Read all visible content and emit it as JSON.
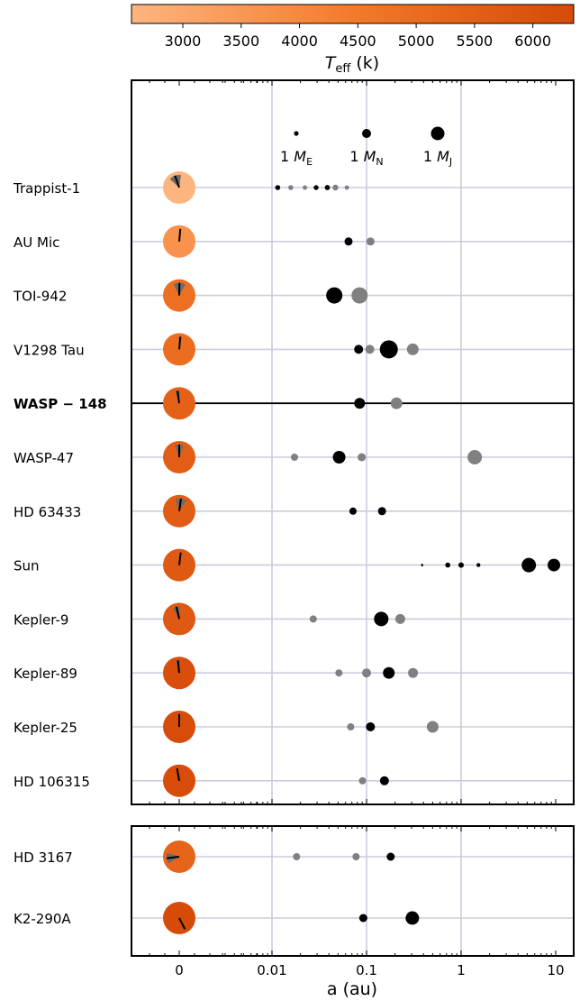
{
  "colorbar": {
    "label": "T",
    "label_sub": "eff",
    "label_unit": " (k)",
    "ticks": [
      3000,
      3500,
      4000,
      4500,
      5000,
      5500,
      6000
    ],
    "range": [
      2560,
      6350
    ],
    "colors": {
      "low": "#fdb57f",
      "mid": "#f47a2a",
      "high": "#d54a07"
    }
  },
  "chart_data": {
    "type": "scatter",
    "xlabel": "a (au)",
    "xscale": "log",
    "xticks": [
      "0",
      "0.01",
      "0.1",
      "1",
      "10"
    ],
    "xlim": [
      0.0008,
      15
    ],
    "legend": [
      {
        "label": "1 M",
        "sub": "E",
        "size": "earth"
      },
      {
        "label": "1 M",
        "sub": "N",
        "size": "neptune"
      },
      {
        "label": "1 M",
        "sub": "J",
        "size": "jupiter"
      }
    ],
    "colors": {
      "black": "#000000",
      "grey": "#808080",
      "grid": "#ccccdd",
      "wedge": "#6b6b6b"
    },
    "panels": [
      {
        "systems": [
          {
            "name": "Trappist-1",
            "teff": 2566,
            "obliquity": -20,
            "unc": 28,
            "planets": [
              {
                "a": 0.0115,
                "r": 2.8,
                "c": "black"
              },
              {
                "a": 0.0158,
                "r": 2.8,
                "c": "grey"
              },
              {
                "a": 0.0223,
                "r": 2.5,
                "c": "grey"
              },
              {
                "a": 0.0293,
                "r": 2.7,
                "c": "black"
              },
              {
                "a": 0.0385,
                "r": 2.9,
                "c": "black"
              },
              {
                "a": 0.0469,
                "r": 3.2,
                "c": "grey"
              },
              {
                "a": 0.0619,
                "r": 2.4,
                "c": "grey"
              }
            ]
          },
          {
            "name": "AU Mic",
            "teff": 3700,
            "obliquity": 5,
            "unc": 5,
            "planets": [
              {
                "a": 0.0645,
                "r": 4.5,
                "c": "black"
              },
              {
                "a": 0.11,
                "r": 4.5,
                "c": "grey"
              }
            ]
          },
          {
            "name": "TOI-942",
            "teff": 4900,
            "obliquity": 1,
            "unc": 28,
            "planets": [
              {
                "a": 0.0456,
                "r": 9,
                "c": "black"
              },
              {
                "a": 0.0844,
                "r": 9,
                "c": "grey"
              }
            ]
          },
          {
            "name": "V1298 Tau",
            "teff": 4970,
            "obliquity": 5,
            "unc": 7,
            "planets": [
              {
                "a": 0.0825,
                "r": 5,
                "c": "black"
              },
              {
                "a": 0.1083,
                "r": 5,
                "c": "grey"
              },
              {
                "a": 0.172,
                "r": 10,
                "c": "black"
              },
              {
                "a": 0.308,
                "r": 6.5,
                "c": "grey"
              }
            ]
          },
          {
            "name": "WASP-148",
            "teff": 5460,
            "obliquity": -8,
            "unc": 10,
            "bold": true,
            "planets": [
              {
                "a": 0.0845,
                "r": 6,
                "c": "black"
              },
              {
                "a": 0.2073,
                "r": 6.5,
                "c": "grey"
              }
            ]
          },
          {
            "name": "WASP-47",
            "teff": 5550,
            "obliquity": 0,
            "unc": 20,
            "planets": [
              {
                "a": 0.0173,
                "r": 4,
                "c": "grey"
              },
              {
                "a": 0.0513,
                "r": 7,
                "c": "black"
              },
              {
                "a": 0.0889,
                "r": 4.5,
                "c": "grey"
              },
              {
                "a": 1.393,
                "r": 8,
                "c": "grey"
              }
            ]
          },
          {
            "name": "HD 63433",
            "teff": 5640,
            "obliquity": 8,
            "unc": 25,
            "planets": [
              {
                "a": 0.0719,
                "r": 4,
                "c": "black"
              },
              {
                "a": 0.1458,
                "r": 4.5,
                "c": "black"
              }
            ]
          },
          {
            "name": "Sun",
            "teff": 5772,
            "obliquity": 7,
            "unc": 0,
            "planets": [
              {
                "a": 0.387,
                "r": 1.3,
                "c": "black"
              },
              {
                "a": 0.723,
                "r": 2.8,
                "c": "black"
              },
              {
                "a": 1.0,
                "r": 3,
                "c": "black"
              },
              {
                "a": 1.524,
                "r": 2.2,
                "c": "black"
              },
              {
                "a": 5.2,
                "r": 8,
                "c": "black"
              },
              {
                "a": 9.58,
                "r": 7,
                "c": "black"
              }
            ]
          },
          {
            "name": "Kepler-9",
            "teff": 5774,
            "obliquity": -13,
            "unc": 16,
            "planets": [
              {
                "a": 0.0273,
                "r": 4,
                "c": "grey"
              },
              {
                "a": 0.143,
                "r": 8,
                "c": "black"
              },
              {
                "a": 0.227,
                "r": 5.5,
                "c": "grey"
              }
            ]
          },
          {
            "name": "Kepler-89",
            "teff": 6182,
            "obliquity": -6,
            "unc": 10,
            "planets": [
              {
                "a": 0.051,
                "r": 4,
                "c": "grey"
              },
              {
                "a": 0.1,
                "r": 5,
                "c": "grey"
              },
              {
                "a": 0.172,
                "r": 6.5,
                "c": "black"
              },
              {
                "a": 0.31,
                "r": 5.5,
                "c": "grey"
              }
            ]
          },
          {
            "name": "Kepler-25",
            "teff": 6270,
            "obliquity": 0,
            "unc": 7,
            "planets": [
              {
                "a": 0.068,
                "r": 4,
                "c": "grey"
              },
              {
                "a": 0.11,
                "r": 5,
                "c": "black"
              },
              {
                "a": 0.5,
                "r": 6.5,
                "c": "grey"
              }
            ]
          },
          {
            "name": "HD 106315",
            "teff": 6290,
            "obliquity": -10,
            "unc": 3,
            "planets": [
              {
                "a": 0.0906,
                "r": 4,
                "c": "grey"
              },
              {
                "a": 0.1546,
                "r": 5,
                "c": "black"
              }
            ]
          }
        ]
      },
      {
        "systems": [
          {
            "name": "HD 3167",
            "teff": 5286,
            "obliquity": -97,
            "unc": 25,
            "planets": [
              {
                "a": 0.0182,
                "r": 4,
                "c": "grey"
              },
              {
                "a": 0.0775,
                "r": 4,
                "c": "grey"
              },
              {
                "a": 0.18,
                "r": 4.5,
                "c": "black"
              }
            ]
          },
          {
            "name": "K2-290A",
            "teff": 6302,
            "obliquity": 153,
            "unc": 6,
            "planets": [
              {
                "a": 0.0923,
                "r": 4.5,
                "c": "black"
              },
              {
                "a": 0.305,
                "r": 7.5,
                "c": "black"
              }
            ]
          }
        ]
      }
    ]
  }
}
